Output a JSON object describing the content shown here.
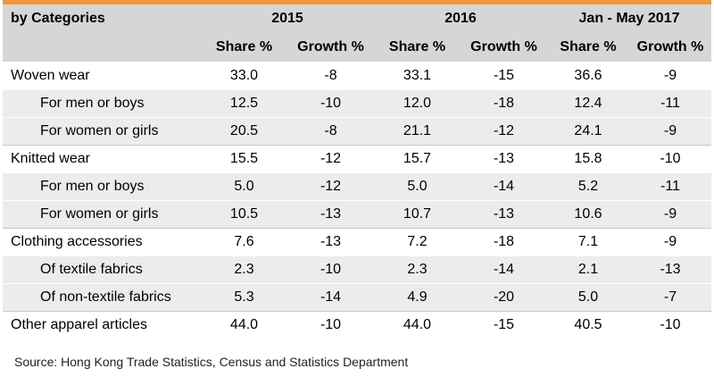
{
  "header": {
    "category_label": "by Categories",
    "years": [
      "2015",
      "2016",
      "Jan - May 2017"
    ],
    "share_label": "Share %",
    "growth_label": "Growth %"
  },
  "rows": [
    {
      "label": "Woven wear",
      "level": "main",
      "values": [
        "33.0",
        "-8",
        "33.1",
        "-15",
        "36.6",
        "-9"
      ]
    },
    {
      "label": "For men or boys",
      "level": "sub",
      "values": [
        "12.5",
        "-10",
        "12.0",
        "-18",
        "12.4",
        "-11"
      ]
    },
    {
      "label": "For women or girls",
      "level": "sub",
      "values": [
        "20.5",
        "-8",
        "21.1",
        "-12",
        "24.1",
        "-9"
      ]
    },
    {
      "label": "Knitted wear",
      "level": "main",
      "values": [
        "15.5",
        "-12",
        "15.7",
        "-13",
        "15.8",
        "-10"
      ]
    },
    {
      "label": "For men or boys",
      "level": "sub",
      "values": [
        "5.0",
        "-12",
        "5.0",
        "-14",
        "5.2",
        "-11"
      ]
    },
    {
      "label": "For women or girls",
      "level": "sub",
      "values": [
        "10.5",
        "-13",
        "10.7",
        "-13",
        "10.6",
        "-9"
      ]
    },
    {
      "label": "Clothing accessories",
      "level": "main",
      "values": [
        "7.6",
        "-13",
        "7.2",
        "-18",
        "7.1",
        "-9"
      ]
    },
    {
      "label": "Of textile fabrics",
      "level": "sub",
      "values": [
        "2.3",
        "-10",
        "2.3",
        "-14",
        "2.1",
        "-13"
      ]
    },
    {
      "label": "Of non-textile fabrics",
      "level": "sub",
      "values": [
        "5.3",
        "-14",
        "4.9",
        "-20",
        "5.0",
        "-7"
      ]
    },
    {
      "label": "Other apparel articles",
      "level": "main",
      "values": [
        "44.0",
        "-10",
        "44.0",
        "-15",
        "40.5",
        "-10"
      ]
    }
  ],
  "source": "Source: Hong Kong Trade Statistics, Census and Statistics Department",
  "colors": {
    "accent": "#f0963a",
    "header_bg": "#d6d6d6",
    "sub_row_bg": "#ececec"
  }
}
